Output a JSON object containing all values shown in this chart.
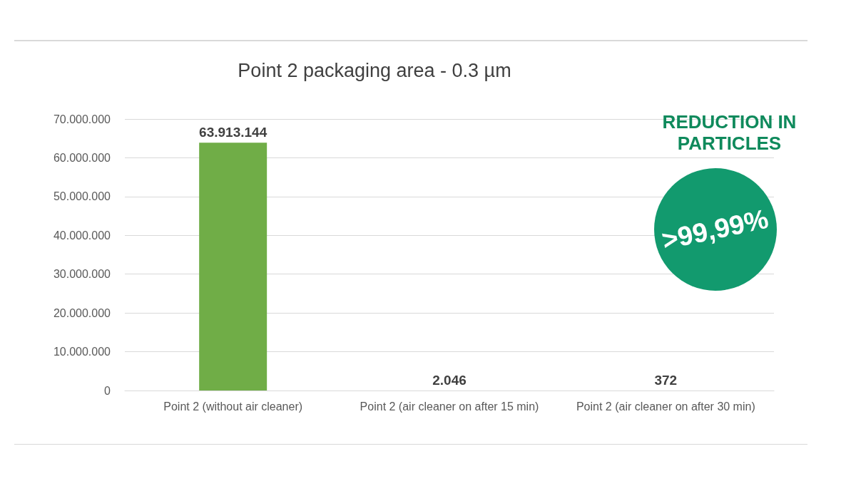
{
  "chart_data": {
    "type": "bar",
    "title": "Point 2 packaging area - 0.3 µm",
    "categories": [
      "Point 2 (without air cleaner)",
      "Point 2 (air cleaner on after 15 min)",
      "Point 2 (air cleaner on after 30 min)"
    ],
    "values": [
      63913144,
      2046,
      372
    ],
    "value_labels": [
      "63.913.144",
      "2.046",
      "372"
    ],
    "color": "#70ad47",
    "ylim": [
      0,
      70000000
    ],
    "yticks": [
      {
        "value": 0,
        "label": "0"
      },
      {
        "value": 10000000,
        "label": "10.000.000"
      },
      {
        "value": 20000000,
        "label": "20.000.000"
      },
      {
        "value": 30000000,
        "label": "30.000.000"
      },
      {
        "value": 40000000,
        "label": "40.000.000"
      },
      {
        "value": 50000000,
        "label": "50.000.000"
      },
      {
        "value": 60000000,
        "label": "60.000.000"
      },
      {
        "value": 70000000,
        "label": "70.000.000"
      }
    ],
    "grid": "y",
    "annotations": [
      "REDUCTION IN PARTICLES",
      ">99,99%"
    ]
  }
}
